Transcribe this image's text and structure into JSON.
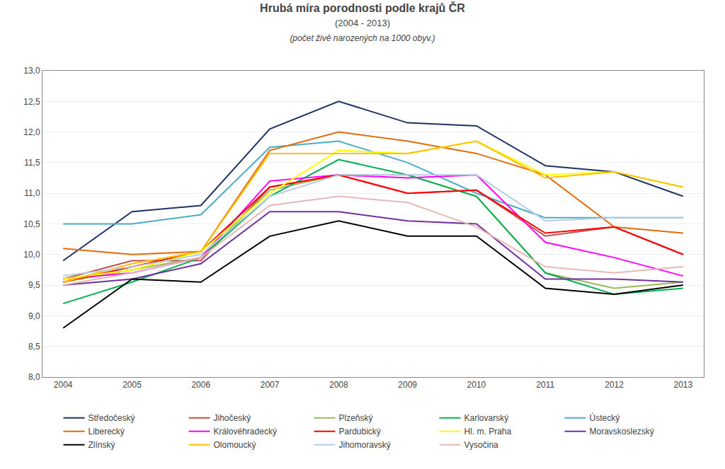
{
  "chart_data": {
    "type": "line",
    "title": "Hrubá míra porodnosti podle krajů ČR",
    "subtitle": [
      "(2004 - 2013)",
      "(počet živě narozených na 1000 obyv.)"
    ],
    "x": [
      2004,
      2005,
      2006,
      2007,
      2008,
      2009,
      2010,
      2011,
      2012,
      2013
    ],
    "xlim": [
      2003.7,
      2013.3
    ],
    "xticks": [
      2004,
      2005,
      2006,
      2007,
      2008,
      2009,
      2010,
      2011,
      2012,
      2013
    ],
    "ylim": [
      8.0,
      13.0
    ],
    "yticks": [
      {
        "value": 8.0,
        "label": "8,0"
      },
      {
        "value": 8.5,
        "label": "8,5"
      },
      {
        "value": 9.0,
        "label": "9,0"
      },
      {
        "value": 9.5,
        "label": "9,5"
      },
      {
        "value": 10.0,
        "label": "10,0"
      },
      {
        "value": 10.5,
        "label": "10,5"
      },
      {
        "value": 11.0,
        "label": "11,0"
      },
      {
        "value": 11.5,
        "label": "11,5"
      },
      {
        "value": 12.0,
        "label": "12,0"
      },
      {
        "value": 12.5,
        "label": "12,5"
      },
      {
        "value": 13.0,
        "label": "13,0"
      }
    ],
    "grid": "y",
    "legend": "bottom",
    "series": [
      {
        "name": "Středočeský",
        "color": "#1f3264",
        "values": [
          9.9,
          10.7,
          10.8,
          12.05,
          12.5,
          12.15,
          12.1,
          11.45,
          11.35,
          10.95
        ]
      },
      {
        "name": "Jihočeský",
        "color": "#c0504d",
        "values": [
          9.6,
          9.9,
          9.9,
          11.1,
          11.3,
          11.0,
          11.05,
          10.3,
          10.45,
          10.0
        ]
      },
      {
        "name": "Plzeňský",
        "color": "#9bbb59",
        "values": [
          9.55,
          9.75,
          9.95,
          11.05,
          11.3,
          11.3,
          10.95,
          9.7,
          9.45,
          9.55
        ]
      },
      {
        "name": "Karlovarský",
        "color": "#00b050",
        "values": [
          9.2,
          9.55,
          9.95,
          10.95,
          11.55,
          11.3,
          10.95,
          9.7,
          9.35,
          9.45
        ]
      },
      {
        "name": "Ústecký",
        "color": "#4bacc6",
        "values": [
          10.5,
          10.5,
          10.65,
          11.75,
          11.85,
          11.5,
          11.0,
          10.6,
          10.6,
          10.6
        ]
      },
      {
        "name": "Liberecký",
        "color": "#e36c09",
        "values": [
          10.1,
          10.0,
          10.05,
          11.7,
          12.0,
          11.85,
          11.65,
          11.3,
          10.45,
          10.35
        ]
      },
      {
        "name": "Královéhradecký",
        "color": "#ff00ff",
        "values": [
          9.6,
          9.7,
          9.95,
          11.2,
          11.3,
          11.25,
          11.3,
          10.2,
          9.95,
          9.65
        ]
      },
      {
        "name": "Pardubický",
        "color": "#ff0000",
        "values": [
          9.55,
          9.8,
          10.05,
          11.1,
          11.3,
          11.0,
          11.05,
          10.35,
          10.45,
          10.0
        ]
      },
      {
        "name": "Hl. m. Praha",
        "color": "#ffff00",
        "values": [
          9.6,
          9.75,
          10.05,
          11.0,
          11.7,
          11.65,
          11.85,
          11.3,
          11.35,
          11.1
        ]
      },
      {
        "name": "Moravskoslezský",
        "color": "#7030a0",
        "values": [
          9.5,
          9.6,
          9.85,
          10.7,
          10.7,
          10.55,
          10.5,
          9.6,
          9.6,
          9.55
        ]
      },
      {
        "name": "Zlínský",
        "color": "#000000",
        "values": [
          8.8,
          9.6,
          9.55,
          10.3,
          10.55,
          10.3,
          10.3,
          9.45,
          9.35,
          9.5
        ]
      },
      {
        "name": "Olomoucký",
        "color": "#ffc000",
        "values": [
          9.55,
          9.85,
          10.05,
          11.65,
          11.65,
          11.65,
          11.85,
          11.25,
          11.35,
          11.1
        ]
      },
      {
        "name": "Jihomoravský",
        "color": "#b8cce4",
        "values": [
          9.65,
          9.8,
          10.0,
          10.95,
          11.3,
          11.3,
          11.3,
          10.55,
          10.6,
          10.6
        ]
      },
      {
        "name": "Vysočina",
        "color": "#e6b8b7",
        "values": [
          9.5,
          9.7,
          9.95,
          10.8,
          10.95,
          10.85,
          10.45,
          9.8,
          9.7,
          9.8
        ]
      }
    ]
  }
}
